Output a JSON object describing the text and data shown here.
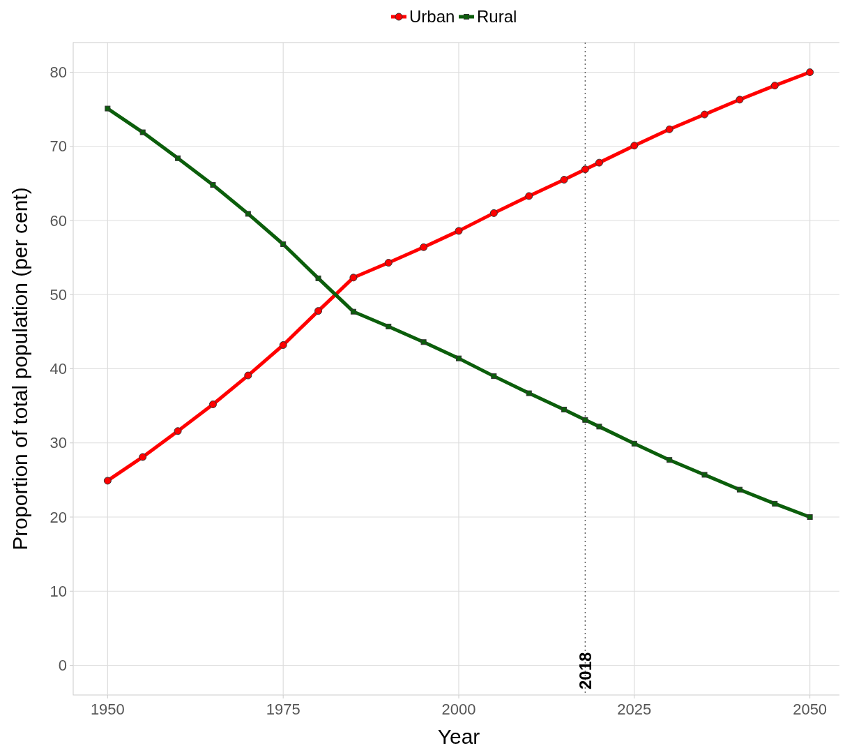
{
  "chart_data": {
    "type": "line",
    "xlabel": "Year",
    "ylabel": "Proportion of total population (per cent)",
    "x": [
      1950,
      1955,
      1960,
      1965,
      1970,
      1975,
      1980,
      1985,
      1990,
      1995,
      2000,
      2005,
      2010,
      2015,
      2018,
      2020,
      2025,
      2030,
      2035,
      2040,
      2045,
      2050
    ],
    "series": [
      {
        "name": "Urban",
        "color": "#ff0000",
        "marker": "circle",
        "values": [
          24.9,
          28.1,
          31.6,
          35.2,
          39.1,
          43.2,
          47.8,
          52.3,
          54.3,
          56.4,
          58.6,
          61.0,
          63.3,
          65.5,
          66.9,
          67.8,
          70.1,
          72.3,
          74.3,
          76.3,
          78.2,
          80.0
        ]
      },
      {
        "name": "Rural",
        "color": "#0b5e0b",
        "marker": "square",
        "values": [
          75.1,
          71.9,
          68.4,
          64.8,
          60.9,
          56.8,
          52.2,
          47.7,
          45.7,
          43.6,
          41.4,
          39.0,
          36.7,
          34.5,
          33.1,
          32.2,
          29.9,
          27.7,
          25.7,
          23.7,
          21.8,
          20.0
        ]
      }
    ],
    "xlim": [
      1945.1,
      2054.9
    ],
    "xticks": [
      1950,
      1975,
      2000,
      2025,
      2050
    ],
    "ylim": [
      -4,
      84
    ],
    "yticks": [
      0,
      10,
      20,
      30,
      40,
      50,
      60,
      70,
      80
    ],
    "grid": true,
    "legend": "top",
    "line_style": "solid",
    "ref_lines": [
      {
        "axis": "x",
        "value": 2018,
        "label": "2018",
        "color": "#555555",
        "line_style": "dotted"
      }
    ]
  }
}
